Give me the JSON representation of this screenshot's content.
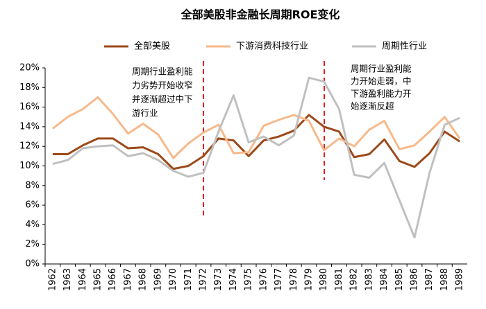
{
  "chart_data": {
    "type": "line",
    "title": "全部美股非金融长周期ROE变化",
    "categories": [
      "1962",
      "1963",
      "1964",
      "1965",
      "1966",
      "1967",
      "1968",
      "1969",
      "1970",
      "1971",
      "1972",
      "1973",
      "1974",
      "1975",
      "1976",
      "1977",
      "1978",
      "1979",
      "1980",
      "1981",
      "1982",
      "1983",
      "1984",
      "1985",
      "1986",
      "1987",
      "1988",
      "1989"
    ],
    "series": [
      {
        "name": "全部美股",
        "color": "#9c4a1a",
        "values": [
          11.2,
          11.2,
          12.1,
          12.8,
          12.8,
          11.8,
          11.9,
          11.2,
          9.7,
          10.0,
          11.0,
          12.8,
          12.6,
          11.0,
          12.6,
          13.0,
          13.6,
          15.2,
          14.0,
          13.5,
          10.9,
          11.2,
          12.7,
          10.5,
          9.9,
          11.3,
          13.5,
          12.5
        ]
      },
      {
        "name": "下游消费科技行业",
        "color": "#f7b98a",
        "values": [
          13.8,
          15.0,
          15.8,
          17.0,
          15.3,
          13.3,
          14.3,
          13.2,
          10.8,
          12.3,
          13.4,
          14.2,
          11.3,
          11.4,
          14.1,
          14.7,
          15.2,
          14.6,
          11.6,
          12.8,
          12.0,
          13.7,
          14.6,
          11.7,
          12.1,
          13.5,
          15.0,
          12.8
        ]
      },
      {
        "name": "周期性行业",
        "color": "#c0c0c0",
        "values": [
          10.2,
          10.6,
          11.8,
          12.0,
          12.1,
          11.0,
          11.3,
          10.6,
          9.5,
          8.9,
          9.3,
          13.5,
          17.2,
          12.4,
          13.0,
          12.1,
          13.1,
          19.0,
          18.6,
          15.8,
          9.1,
          8.8,
          10.3,
          6.5,
          2.7,
          9.3,
          14.2,
          14.9
        ]
      }
    ],
    "ylim": [
      0,
      20
    ],
    "yticks": [
      {
        "value": 0,
        "label": "0%"
      },
      {
        "value": 2,
        "label": "2%"
      },
      {
        "value": 4,
        "label": "4%"
      },
      {
        "value": 6,
        "label": "6%"
      },
      {
        "value": 8,
        "label": "8%"
      },
      {
        "value": 10,
        "label": "10%"
      },
      {
        "value": 12,
        "label": "12%"
      },
      {
        "value": 14,
        "label": "14%"
      },
      {
        "value": 16,
        "label": "16%"
      },
      {
        "value": 18,
        "label": "18%"
      },
      {
        "value": 20,
        "label": "20%"
      }
    ],
    "grid": false,
    "annotations": [
      {
        "lines": [
          "周期行业盈利能",
          "力劣势开始收窄",
          "并逐渐超过中下",
          "游行业"
        ]
      },
      {
        "lines": [
          "周期行业盈利能",
          "力开始走弱，中",
          "下游盈利能力开",
          "始逐渐反超"
        ]
      }
    ]
  }
}
